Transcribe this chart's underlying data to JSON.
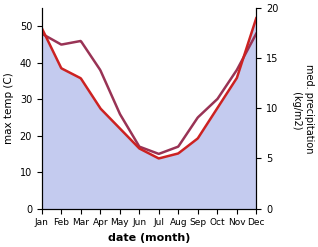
{
  "months": [
    "Jan",
    "Feb",
    "Mar",
    "Apr",
    "May",
    "Jun",
    "Jul",
    "Aug",
    "Sep",
    "Oct",
    "Nov",
    "Dec"
  ],
  "max_temp": [
    48,
    45,
    46,
    38,
    26,
    17,
    15,
    17,
    25,
    30,
    38,
    48
  ],
  "precipitation": [
    18,
    14,
    13,
    10,
    8,
    6,
    5,
    5.5,
    7,
    10,
    13,
    19
  ],
  "left_ylabel": "max temp (C)",
  "right_ylabel": "med. precipitation\n (kg/m2)",
  "xlabel": "date (month)",
  "ylim_left": [
    0,
    55
  ],
  "ylim_right": [
    0,
    20
  ],
  "fill_color": "#b0baea",
  "fill_alpha": 0.75,
  "temp_line_color": "#993355",
  "precip_line_color": "#cc2222",
  "background": "#ffffff",
  "temp_lw": 1.8,
  "precip_lw": 1.8
}
